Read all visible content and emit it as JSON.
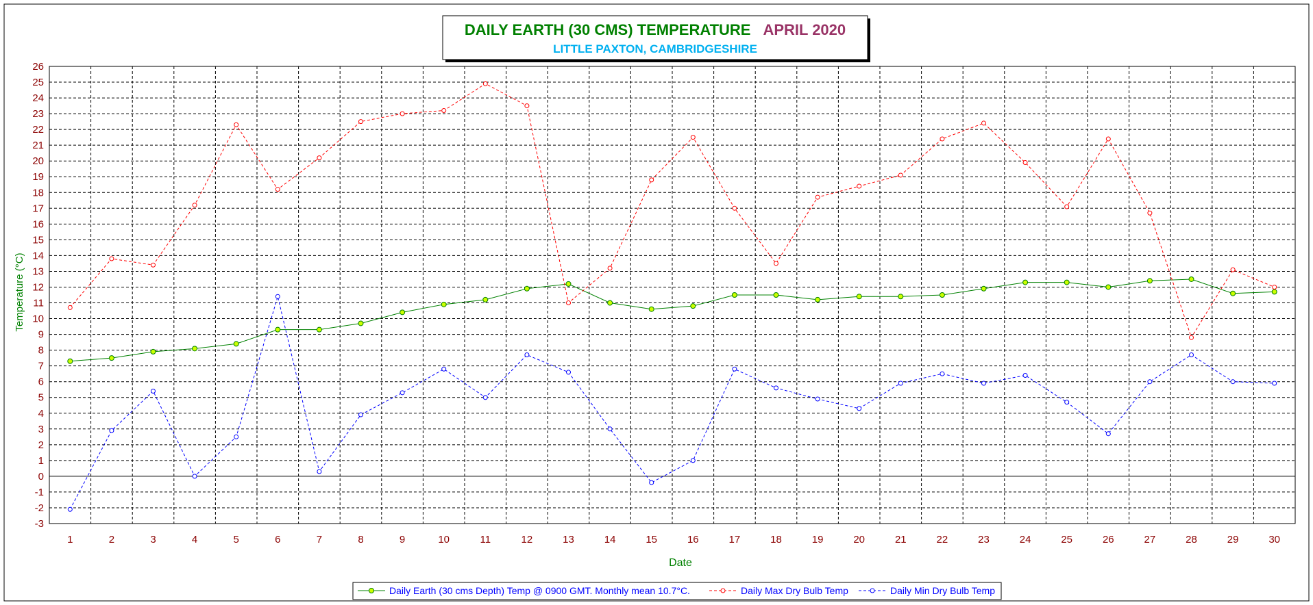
{
  "title": {
    "main": "DAILY EARTH (30 CMS) TEMPERATURE",
    "period": "APRIL 2020",
    "location": "LITTLE PAXTON, CAMBRIDGESHIRE"
  },
  "colors": {
    "title_main": "#008000",
    "title_period": "#993366",
    "title_location": "#00B0F0",
    "axis_ticks": "#8B0000",
    "axis_title": "#008000",
    "earth": "#008000",
    "earth_marker": "#CCFF00",
    "max": "#FF0000",
    "min": "#0000FF",
    "legend_text": "#0000FF"
  },
  "chart_data": {
    "type": "line",
    "xlabel": "Date",
    "ylabel": "Temperature (°C)",
    "ylim": [
      -3,
      26
    ],
    "y_ticks": [
      "26",
      "25",
      "24",
      "23",
      "22",
      "21",
      "20",
      "19",
      "18",
      "17",
      "16",
      "15",
      "14",
      "13",
      "12",
      "11",
      "10",
      "9",
      "8",
      "7",
      "6",
      "5",
      "4",
      "3",
      "2",
      "1",
      "0",
      "-1",
      "-2",
      "-3"
    ],
    "grid": true,
    "legend_position": "bottom",
    "categories": [
      "1",
      "2",
      "3",
      "4",
      "5",
      "6",
      "7",
      "8",
      "9",
      "10",
      "11",
      "12",
      "13",
      "14",
      "15",
      "16",
      "17",
      "18",
      "19",
      "20",
      "21",
      "22",
      "23",
      "24",
      "25",
      "26",
      "27",
      "28",
      "29",
      "30"
    ],
    "series": [
      {
        "name": "Daily Earth (30 cms Depth) Temp @ 0900 GMT. Monthly mean 10.7°C.",
        "color": "#008000",
        "style": "solid",
        "values": [
          7.3,
          7.5,
          7.9,
          8.1,
          8.4,
          9.3,
          9.3,
          9.7,
          10.4,
          10.9,
          11.2,
          11.9,
          12.2,
          11.0,
          10.6,
          10.8,
          11.5,
          11.5,
          11.2,
          11.4,
          11.4,
          11.5,
          11.9,
          12.3,
          12.3,
          12.0,
          12.4,
          12.5,
          11.6,
          11.7
        ]
      },
      {
        "name": "Daily Max Dry Bulb Temp",
        "color": "#FF0000",
        "style": "dashed",
        "values": [
          10.7,
          13.8,
          13.4,
          17.2,
          22.3,
          18.2,
          20.2,
          22.5,
          23.0,
          23.2,
          24.9,
          23.5,
          11.0,
          13.2,
          18.8,
          21.5,
          17.0,
          13.5,
          17.7,
          18.4,
          19.1,
          21.4,
          22.4,
          19.9,
          17.1,
          21.4,
          16.7,
          8.8,
          13.1,
          12.0
        ]
      },
      {
        "name": "Daily Min Dry Bulb Temp",
        "color": "#0000FF",
        "style": "dashed",
        "values": [
          -2.1,
          2.9,
          5.4,
          0.0,
          2.5,
          11.4,
          0.3,
          3.9,
          5.3,
          6.8,
          5.0,
          7.7,
          6.6,
          3.0,
          -0.4,
          1.0,
          6.8,
          5.6,
          4.9,
          4.3,
          5.9,
          6.5,
          5.9,
          6.4,
          4.7,
          2.7,
          6.0,
          7.7,
          6.0,
          5.9
        ]
      }
    ]
  }
}
